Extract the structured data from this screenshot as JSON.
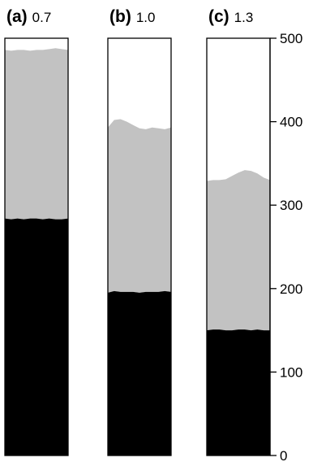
{
  "chart_data": {
    "type": "area",
    "title": "",
    "xlabel": "",
    "ylabel": "",
    "ylim": [
      0,
      500
    ],
    "yticks": [
      0,
      100,
      200,
      300,
      400,
      500
    ],
    "grid": false,
    "legend": "none",
    "colors": {
      "lower_layer": "#000000",
      "upper_layer": "#c2c2c2",
      "empty": "#ffffff"
    },
    "panels": [
      {
        "letter": "(a)",
        "value": "0.7",
        "lower_top": [
          284,
          283,
          284,
          283,
          284,
          284,
          283,
          284,
          283,
          283,
          284
        ],
        "upper_top": [
          486,
          485,
          486,
          486,
          485,
          486,
          486,
          487,
          488,
          487,
          486
        ]
      },
      {
        "letter": "(b)",
        "value": "1.0",
        "lower_top": [
          195,
          197,
          196,
          196,
          196,
          195,
          196,
          196,
          196,
          197,
          196
        ],
        "upper_top": [
          393,
          402,
          403,
          400,
          396,
          392,
          391,
          393,
          392,
          391,
          393
        ]
      },
      {
        "letter": "(c)",
        "value": "1.3",
        "lower_top": [
          150,
          151,
          151,
          150,
          150,
          151,
          151,
          150,
          151,
          150,
          150
        ],
        "upper_top": [
          329,
          330,
          330,
          331,
          335,
          339,
          342,
          341,
          338,
          333,
          330
        ]
      }
    ]
  }
}
